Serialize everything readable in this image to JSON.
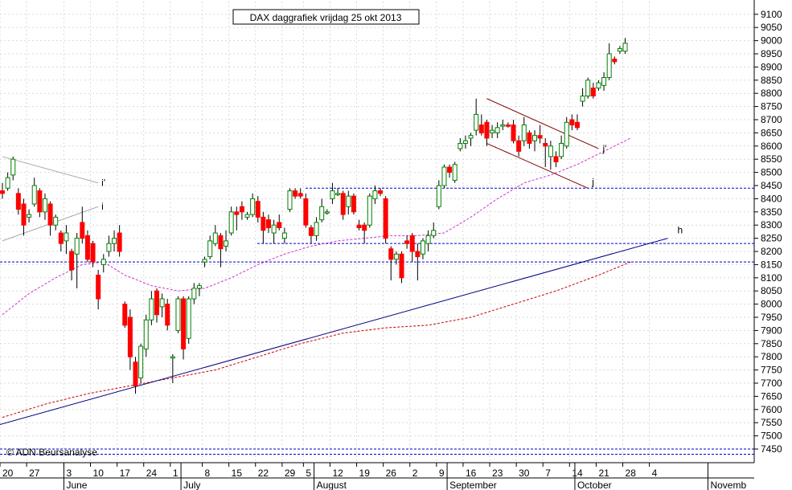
{
  "chart_data": {
    "type": "candlestick",
    "title": "DAX daggrafiek vrijdag 25 okt 2013",
    "credit": "© ADN Beursanalyse",
    "y_ticks": [
      7450,
      7500,
      7550,
      7600,
      7650,
      7700,
      7750,
      7800,
      7850,
      7900,
      7950,
      8000,
      8050,
      8100,
      8150,
      8200,
      8250,
      8300,
      8350,
      8400,
      8450,
      8500,
      8550,
      8600,
      8650,
      8700,
      8750,
      8800,
      8850,
      8900,
      8950,
      9000,
      9050,
      9100
    ],
    "ylim": [
      7400,
      9130
    ],
    "x_day_labels": [
      "20",
      "27",
      "3",
      "10",
      "17",
      "24",
      "1",
      "8",
      "15",
      "22",
      "29",
      "5",
      "12",
      "19",
      "26",
      "2",
      "9",
      "16",
      "23",
      "30",
      "7",
      "14",
      "21",
      "28",
      "4"
    ],
    "x_month_labels": [
      "June",
      "July",
      "August",
      "September",
      "October",
      "Novemb"
    ],
    "grid": true,
    "candles": [
      {
        "o": 8430,
        "h": 8460,
        "l": 8400,
        "c": 8420
      },
      {
        "o": 8440,
        "h": 8500,
        "l": 8430,
        "c": 8480
      },
      {
        "o": 8490,
        "h": 8560,
        "l": 8470,
        "c": 8550
      },
      {
        "o": 8420,
        "h": 8440,
        "l": 8340,
        "c": 8360
      },
      {
        "o": 8380,
        "h": 8400,
        "l": 8260,
        "c": 8300
      },
      {
        "o": 8330,
        "h": 8360,
        "l": 8310,
        "c": 8340
      },
      {
        "o": 8380,
        "h": 8480,
        "l": 8370,
        "c": 8450
      },
      {
        "o": 8430,
        "h": 8440,
        "l": 8330,
        "c": 8350
      },
      {
        "o": 8350,
        "h": 8420,
        "l": 8320,
        "c": 8400
      },
      {
        "o": 8380,
        "h": 8390,
        "l": 8260,
        "c": 8300
      },
      {
        "o": 8300,
        "h": 8340,
        "l": 8280,
        "c": 8330
      },
      {
        "o": 8270,
        "h": 8280,
        "l": 8200,
        "c": 8230
      },
      {
        "o": 8240,
        "h": 8300,
        "l": 8190,
        "c": 8270
      },
      {
        "o": 8200,
        "h": 8210,
        "l": 8090,
        "c": 8130
      },
      {
        "o": 8190,
        "h": 8270,
        "l": 8060,
        "c": 8250
      },
      {
        "o": 8310,
        "h": 8370,
        "l": 8230,
        "c": 8250
      },
      {
        "o": 8260,
        "h": 8280,
        "l": 8160,
        "c": 8170
      },
      {
        "o": 8230,
        "h": 8240,
        "l": 8140,
        "c": 8160
      },
      {
        "o": 8110,
        "h": 8130,
        "l": 7980,
        "c": 8020
      },
      {
        "o": 8150,
        "h": 8190,
        "l": 8120,
        "c": 8170
      },
      {
        "o": 8200,
        "h": 8260,
        "l": 8180,
        "c": 8230
      },
      {
        "o": 8230,
        "h": 8280,
        "l": 8200,
        "c": 8250
      },
      {
        "o": 8270,
        "h": 8300,
        "l": 8180,
        "c": 8200
      },
      {
        "o": 8000,
        "h": 8010,
        "l": 7910,
        "c": 7920
      },
      {
        "o": 7950,
        "h": 7980,
        "l": 7750,
        "c": 7800
      },
      {
        "o": 7780,
        "h": 7800,
        "l": 7660,
        "c": 7690
      },
      {
        "o": 7720,
        "h": 7850,
        "l": 7700,
        "c": 7840
      },
      {
        "o": 7830,
        "h": 7960,
        "l": 7800,
        "c": 7940
      },
      {
        "o": 7940,
        "h": 8050,
        "l": 7920,
        "c": 8020
      },
      {
        "o": 8050,
        "h": 8060,
        "l": 7930,
        "c": 7960
      },
      {
        "o": 7990,
        "h": 8040,
        "l": 7950,
        "c": 8020
      },
      {
        "o": 8000,
        "h": 8020,
        "l": 7900,
        "c": 7920
      },
      {
        "o": 7800,
        "h": 7810,
        "l": 7700,
        "c": 7800
      },
      {
        "o": 7900,
        "h": 8030,
        "l": 7890,
        "c": 8020
      },
      {
        "o": 8020,
        "h": 8030,
        "l": 7790,
        "c": 7830
      },
      {
        "o": 7870,
        "h": 8030,
        "l": 7850,
        "c": 8020
      },
      {
        "o": 8020,
        "h": 8080,
        "l": 8000,
        "c": 8060
      },
      {
        "o": 8060,
        "h": 8080,
        "l": 8030,
        "c": 8070
      },
      {
        "o": 8160,
        "h": 8180,
        "l": 8140,
        "c": 8170
      },
      {
        "o": 8180,
        "h": 8260,
        "l": 8170,
        "c": 8240
      },
      {
        "o": 8230,
        "h": 8300,
        "l": 8220,
        "c": 8270
      },
      {
        "o": 8260,
        "h": 8270,
        "l": 8140,
        "c": 8210
      },
      {
        "o": 8220,
        "h": 8280,
        "l": 8200,
        "c": 8240
      },
      {
        "o": 8270,
        "h": 8370,
        "l": 8260,
        "c": 8350
      },
      {
        "o": 8350,
        "h": 8370,
        "l": 8280,
        "c": 8340
      },
      {
        "o": 8370,
        "h": 8390,
        "l": 8320,
        "c": 8350
      },
      {
        "o": 8330,
        "h": 8350,
        "l": 8320,
        "c": 8340
      },
      {
        "o": 8340,
        "h": 8420,
        "l": 8330,
        "c": 8400
      },
      {
        "o": 8390,
        "h": 8410,
        "l": 8310,
        "c": 8330
      },
      {
        "o": 8330,
        "h": 8350,
        "l": 8230,
        "c": 8280
      },
      {
        "o": 8320,
        "h": 8340,
        "l": 8270,
        "c": 8290
      },
      {
        "o": 8270,
        "h": 8320,
        "l": 8230,
        "c": 8300
      },
      {
        "o": 8310,
        "h": 8340,
        "l": 8280,
        "c": 8290
      },
      {
        "o": 8250,
        "h": 8290,
        "l": 8230,
        "c": 8270
      },
      {
        "o": 8360,
        "h": 8440,
        "l": 8350,
        "c": 8430
      },
      {
        "o": 8430,
        "h": 8440,
        "l": 8400,
        "c": 8410
      },
      {
        "o": 8420,
        "h": 8440,
        "l": 8400,
        "c": 8410
      },
      {
        "o": 8400,
        "h": 8420,
        "l": 8290,
        "c": 8300
      },
      {
        "o": 8290,
        "h": 8300,
        "l": 8230,
        "c": 8260
      },
      {
        "o": 8260,
        "h": 8330,
        "l": 8240,
        "c": 8310
      },
      {
        "o": 8320,
        "h": 8400,
        "l": 8310,
        "c": 8370
      },
      {
        "o": 8350,
        "h": 8360,
        "l": 8340,
        "c": 8350
      },
      {
        "o": 8400,
        "h": 8460,
        "l": 8380,
        "c": 8430
      },
      {
        "o": 8420,
        "h": 8440,
        "l": 8410,
        "c": 8420
      },
      {
        "o": 8420,
        "h": 8430,
        "l": 8320,
        "c": 8340
      },
      {
        "o": 8370,
        "h": 8430,
        "l": 8340,
        "c": 8410
      },
      {
        "o": 8410,
        "h": 8420,
        "l": 8340,
        "c": 8350
      },
      {
        "o": 8300,
        "h": 8320,
        "l": 8280,
        "c": 8290
      },
      {
        "o": 8300,
        "h": 8310,
        "l": 8230,
        "c": 8280
      },
      {
        "o": 8300,
        "h": 8420,
        "l": 8290,
        "c": 8410
      },
      {
        "o": 8400,
        "h": 8450,
        "l": 8380,
        "c": 8430
      },
      {
        "o": 8430,
        "h": 8440,
        "l": 8410,
        "c": 8420
      },
      {
        "o": 8400,
        "h": 8410,
        "l": 8230,
        "c": 8250
      },
      {
        "o": 8210,
        "h": 8220,
        "l": 8090,
        "c": 8170
      },
      {
        "o": 8170,
        "h": 8200,
        "l": 8150,
        "c": 8190
      },
      {
        "o": 8190,
        "h": 8200,
        "l": 8080,
        "c": 8100
      },
      {
        "o": 8240,
        "h": 8260,
        "l": 8210,
        "c": 8230
      },
      {
        "o": 8260,
        "h": 8270,
        "l": 8160,
        "c": 8200
      },
      {
        "o": 8200,
        "h": 8230,
        "l": 8090,
        "c": 8180
      },
      {
        "o": 8190,
        "h": 8250,
        "l": 8170,
        "c": 8240
      },
      {
        "o": 8230,
        "h": 8280,
        "l": 8200,
        "c": 8260
      },
      {
        "o": 8260,
        "h": 8310,
        "l": 8250,
        "c": 8280
      },
      {
        "o": 8370,
        "h": 8470,
        "l": 8360,
        "c": 8450
      },
      {
        "o": 8450,
        "h": 8530,
        "l": 8440,
        "c": 8520
      },
      {
        "o": 8520,
        "h": 8530,
        "l": 8480,
        "c": 8500
      },
      {
        "o": 8470,
        "h": 8540,
        "l": 8460,
        "c": 8530
      },
      {
        "o": 8590,
        "h": 8630,
        "l": 8580,
        "c": 8610
      },
      {
        "o": 8610,
        "h": 8640,
        "l": 8590,
        "c": 8620
      },
      {
        "o": 8630,
        "h": 8650,
        "l": 8600,
        "c": 8640
      },
      {
        "o": 8660,
        "h": 8780,
        "l": 8640,
        "c": 8720
      },
      {
        "o": 8680,
        "h": 8720,
        "l": 8640,
        "c": 8650
      },
      {
        "o": 8690,
        "h": 8700,
        "l": 8600,
        "c": 8630
      },
      {
        "o": 8650,
        "h": 8680,
        "l": 8630,
        "c": 8660
      },
      {
        "o": 8650,
        "h": 8690,
        "l": 8630,
        "c": 8670
      },
      {
        "o": 8680,
        "h": 8700,
        "l": 8660,
        "c": 8680
      },
      {
        "o": 8680,
        "h": 8690,
        "l": 8670,
        "c": 8675
      },
      {
        "o": 8680,
        "h": 8700,
        "l": 8610,
        "c": 8620
      },
      {
        "o": 8620,
        "h": 8640,
        "l": 8560,
        "c": 8580
      },
      {
        "o": 8620,
        "h": 8710,
        "l": 8600,
        "c": 8680
      },
      {
        "o": 8650,
        "h": 8660,
        "l": 8590,
        "c": 8610
      },
      {
        "o": 8620,
        "h": 8660,
        "l": 8580,
        "c": 8640
      },
      {
        "o": 8640,
        "h": 8680,
        "l": 8610,
        "c": 8630
      },
      {
        "o": 8610,
        "h": 8630,
        "l": 8520,
        "c": 8600
      },
      {
        "o": 8560,
        "h": 8620,
        "l": 8510,
        "c": 8600
      },
      {
        "o": 8560,
        "h": 8580,
        "l": 8520,
        "c": 8540
      },
      {
        "o": 8560,
        "h": 8640,
        "l": 8550,
        "c": 8610
      },
      {
        "o": 8600,
        "h": 8710,
        "l": 8590,
        "c": 8690
      },
      {
        "o": 8700,
        "h": 8720,
        "l": 8660,
        "c": 8680
      },
      {
        "o": 8690,
        "h": 8720,
        "l": 8660,
        "c": 8670
      },
      {
        "o": 8770,
        "h": 8820,
        "l": 8750,
        "c": 8790
      },
      {
        "o": 8790,
        "h": 8860,
        "l": 8780,
        "c": 8850
      },
      {
        "o": 8820,
        "h": 8840,
        "l": 8780,
        "c": 8790
      },
      {
        "o": 8820,
        "h": 8850,
        "l": 8810,
        "c": 8840
      },
      {
        "o": 8830,
        "h": 8880,
        "l": 8810,
        "c": 8860
      },
      {
        "o": 8860,
        "h": 8990,
        "l": 8850,
        "c": 8950
      },
      {
        "o": 8930,
        "h": 8940,
        "l": 8910,
        "c": 8920
      },
      {
        "o": 8960,
        "h": 8980,
        "l": 8950,
        "c": 8970
      },
      {
        "o": 8960,
        "h": 9010,
        "l": 8950,
        "c": 8990
      }
    ],
    "sma_short": [
      [
        0,
        7960
      ],
      [
        5,
        8040
      ],
      [
        10,
        8100
      ],
      [
        15,
        8150
      ],
      [
        19,
        8160
      ],
      [
        23,
        8110
      ],
      [
        28,
        8070
      ],
      [
        33,
        8050
      ],
      [
        38,
        8060
      ],
      [
        43,
        8100
      ],
      [
        48,
        8150
      ],
      [
        53,
        8190
      ],
      [
        58,
        8220
      ],
      [
        63,
        8240
      ],
      [
        68,
        8250
      ],
      [
        73,
        8260
      ],
      [
        78,
        8260
      ],
      [
        83,
        8270
      ],
      [
        88,
        8330
      ],
      [
        93,
        8400
      ],
      [
        98,
        8460
      ],
      [
        103,
        8490
      ],
      [
        108,
        8530
      ],
      [
        113,
        8580
      ],
      [
        118,
        8630
      ]
    ],
    "sma_long": [
      [
        0,
        7570
      ],
      [
        8,
        7620
      ],
      [
        16,
        7660
      ],
      [
        24,
        7690
      ],
      [
        32,
        7720
      ],
      [
        40,
        7750
      ],
      [
        48,
        7800
      ],
      [
        56,
        7850
      ],
      [
        64,
        7890
      ],
      [
        72,
        7910
      ],
      [
        80,
        7920
      ],
      [
        88,
        7950
      ],
      [
        96,
        8000
      ],
      [
        104,
        8050
      ],
      [
        112,
        8110
      ],
      [
        118,
        8160
      ]
    ],
    "horizontal_levels": [
      8440,
      8230,
      8160,
      7450,
      7430
    ],
    "trendline_h": {
      "from": [
        -1,
        7540
      ],
      "to": [
        125,
        8250
      ],
      "label": "h"
    },
    "channel_upper": {
      "from": [
        91,
        8780
      ],
      "to": [
        112,
        8590
      ],
      "label": "j'"
    },
    "channel_lower": {
      "from": [
        91,
        8610
      ],
      "to": [
        110,
        8440
      ],
      "label": "j"
    },
    "wedge_upper": {
      "from": [
        0,
        8560
      ],
      "to": [
        18,
        8460
      ],
      "label": "i'"
    },
    "wedge_lower": {
      "from": [
        0,
        8240
      ],
      "to": [
        18,
        8370
      ],
      "label": "i"
    }
  }
}
